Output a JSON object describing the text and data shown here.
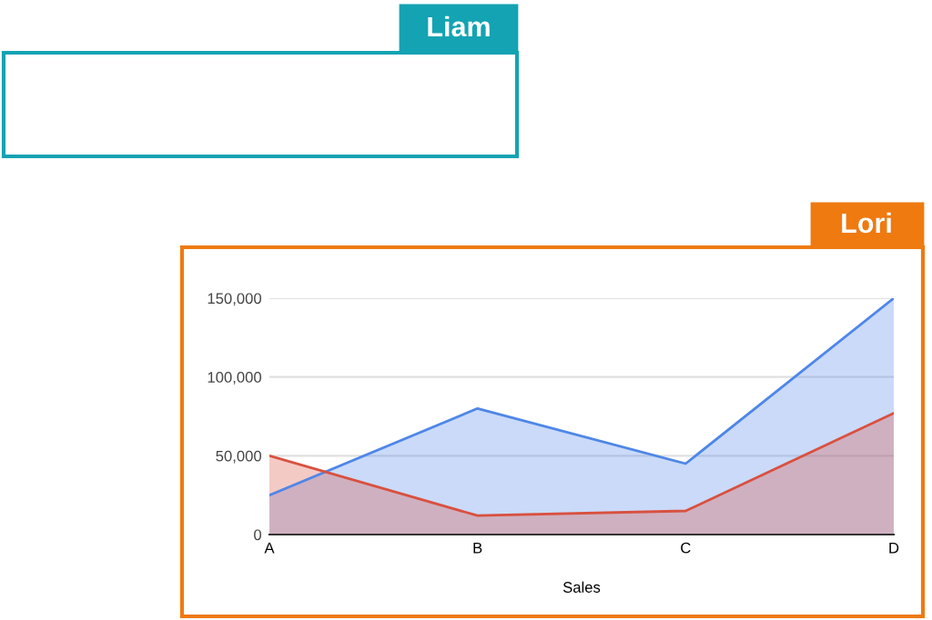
{
  "chart_data": {
    "type": "area",
    "xlabel": "Sales",
    "categories": [
      "A",
      "B",
      "C",
      "D"
    ],
    "series": [
      {
        "color": "#4f86e8",
        "values": [
          25000,
          80000,
          45000,
          150000
        ]
      },
      {
        "color": "#d9503f",
        "values": [
          50000,
          12000,
          15000,
          77000
        ]
      }
    ],
    "ylim": [
      0,
      150000
    ],
    "yticks": [
      {
        "value": 0,
        "label": "0"
      },
      {
        "value": 50000,
        "label": "50,000"
      },
      {
        "value": 100000,
        "label": "100,000"
      },
      {
        "value": 150000,
        "label": "150,000"
      }
    ],
    "grid": "y",
    "legend": false,
    "annotations": [
      "Liam",
      "Lori"
    ]
  }
}
